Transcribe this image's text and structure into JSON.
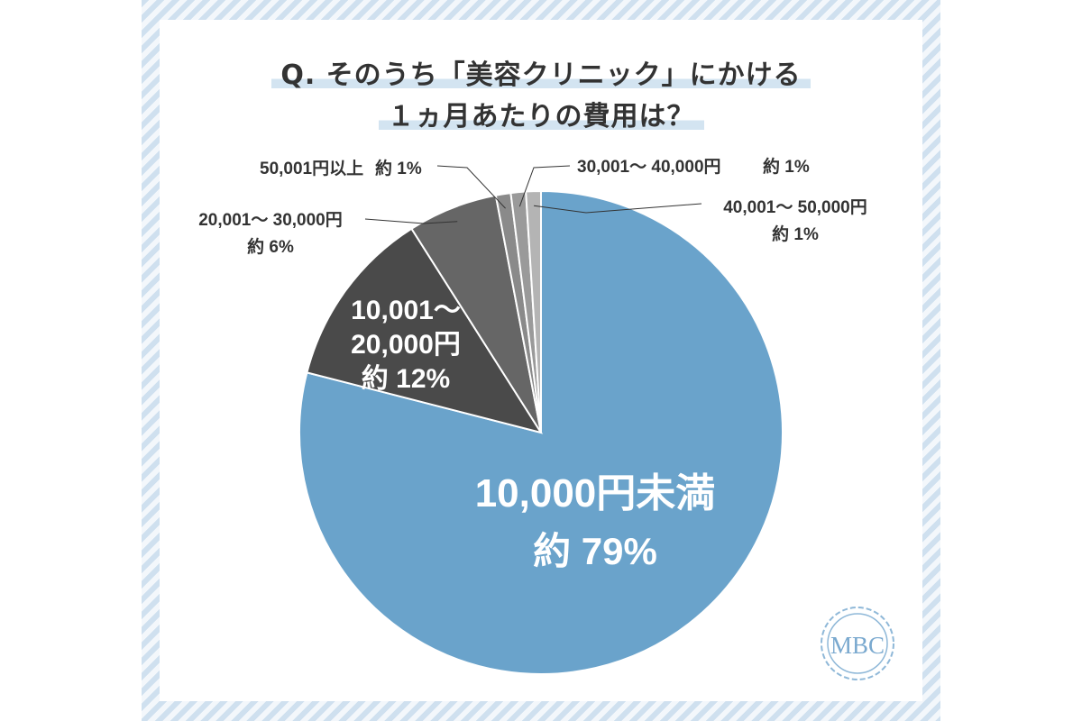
{
  "title": {
    "line1": "Q. そのうち「美容クリニック」にかける",
    "line2": "１ヵ月あたりの費用は？"
  },
  "logo": "MBC",
  "chart_data": {
    "type": "pie",
    "title": "Q. そのうち「美容クリニック」にかける１ヵ月あたりの費用は？",
    "start": "12 o'clock, clockwise",
    "slices": [
      {
        "label": "10,000円未満",
        "value": 79,
        "display": "約 79%",
        "color": "#6aa3cb"
      },
      {
        "label": "10,001～20,000円",
        "value": 12,
        "display": "約 12%",
        "color": "#4a4a4a"
      },
      {
        "label": "20,001～ 30,000円",
        "value": 6,
        "display": "約 6%",
        "color": "#666666"
      },
      {
        "label": "50,001円以上",
        "value": 1,
        "display": "約 1%",
        "color": "#8a8a8a"
      },
      {
        "label": "30,001～ 40,000円",
        "value": 1,
        "display": "約 1%",
        "color": "#9a9a9a"
      },
      {
        "label": "40,001～ 50,000円",
        "value": 1,
        "display": "約 1%",
        "color": "#b4b4b4"
      }
    ]
  }
}
